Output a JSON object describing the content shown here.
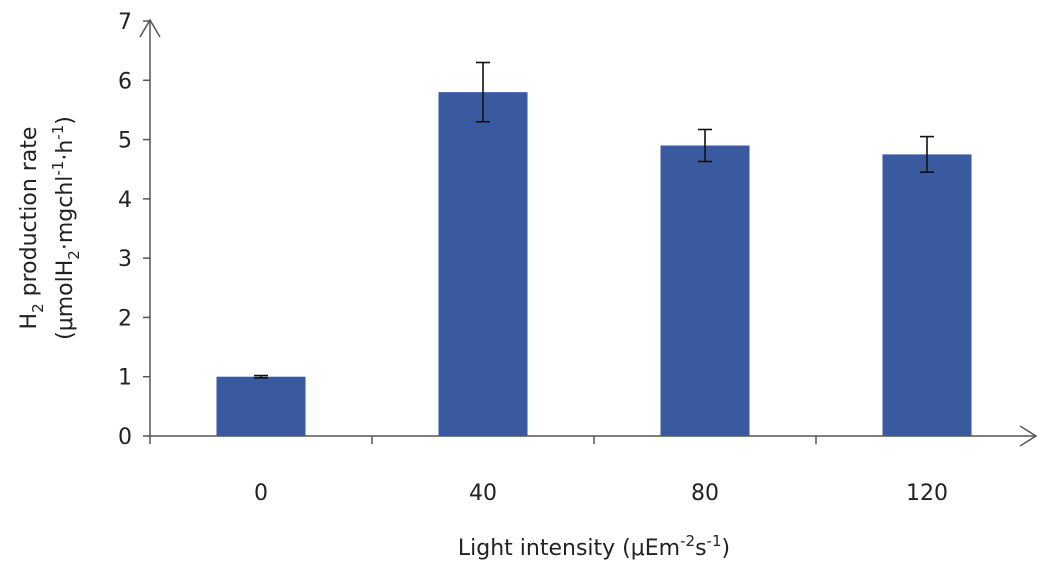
{
  "chart_data": {
    "type": "bar",
    "categories": [
      "0",
      "40",
      "80",
      "120"
    ],
    "values": [
      1.0,
      5.8,
      4.9,
      4.75
    ],
    "errors": [
      0.02,
      0.5,
      0.27,
      0.3
    ],
    "ylim": [
      0,
      7
    ],
    "yticks": [
      "0",
      "1",
      "2",
      "3",
      "4",
      "5",
      "6",
      "7"
    ],
    "bar_color": "#3a5aa0",
    "ylabel_line1": {
      "main": "H",
      "sub": "2",
      "rest": " production rate"
    },
    "ylabel_line2": {
      "p1": "(μmolH",
      "sub": "2",
      "p2": "·mgchl",
      "sup1": "-1",
      "p3": "·h",
      "sup2": "-1",
      "p4": ")"
    },
    "xlabel": {
      "p1": "Light intensity (μEm",
      "sup1": "-2",
      "p2": "s",
      "sup2": "-1",
      "p3": ")"
    }
  }
}
